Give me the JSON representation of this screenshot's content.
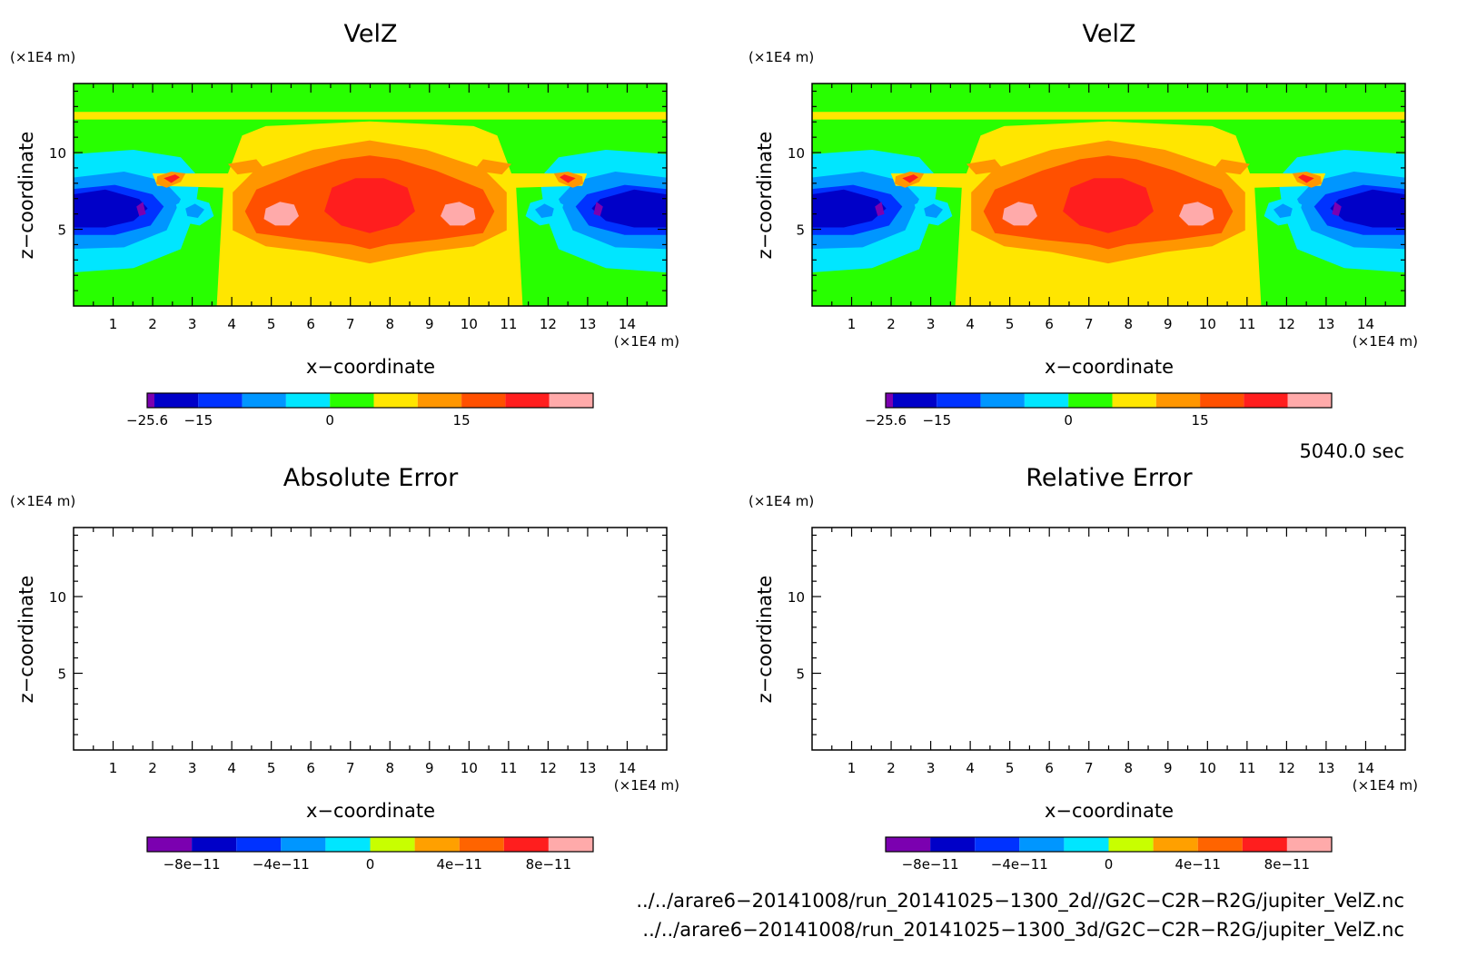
{
  "panels": [
    {
      "id": "velz-2d",
      "title": "VelZ",
      "x_unit": "(×1E4 m)",
      "y_unit": "(×1E4 m)",
      "xlabel": "x−coordinate",
      "ylabel": "z−coordinate",
      "field": "velz",
      "colorbar": {
        "colors": [
          "#7b00b0",
          "#0000c8",
          "#0032ff",
          "#0096ff",
          "#00e6ff",
          "#28ff00",
          "#ffe600",
          "#ff9600",
          "#ff5000",
          "#ff1e1e",
          "#ffaaaa"
        ],
        "labels": [
          "−25.6",
          "−15",
          "0",
          "15"
        ]
      }
    },
    {
      "id": "velz-3d",
      "title": "VelZ",
      "x_unit": "(×1E4 m)",
      "y_unit": "(×1E4 m)",
      "xlabel": "x−coordinate",
      "ylabel": "z−coordinate",
      "field": "velz",
      "colorbar": {
        "colors": [
          "#7b00b0",
          "#0000c8",
          "#0032ff",
          "#0096ff",
          "#00e6ff",
          "#28ff00",
          "#ffe600",
          "#ff9600",
          "#ff5000",
          "#ff1e1e",
          "#ffaaaa"
        ],
        "labels": [
          "−25.6",
          "−15",
          "0",
          "15"
        ]
      }
    },
    {
      "id": "absolute-error",
      "title": "Absolute Error",
      "x_unit": "(×1E4 m)",
      "y_unit": "(×1E4 m)",
      "xlabel": "x−coordinate",
      "ylabel": "z−coordinate",
      "field": "empty",
      "colorbar": {
        "colors": [
          "#7b00b0",
          "#0000c8",
          "#0032ff",
          "#0096ff",
          "#00e6ff",
          "#c8ff00",
          "#ffa000",
          "#ff6400",
          "#ff1e1e",
          "#ffaaaa"
        ],
        "labels": [
          "−8e−11",
          "−4e−11",
          "0",
          "4e−11",
          "8e−11"
        ]
      }
    },
    {
      "id": "relative-error",
      "title": "Relative Error",
      "x_unit": "(×1E4 m)",
      "y_unit": "(×1E4 m)",
      "xlabel": "x−coordinate",
      "ylabel": "z−coordinate",
      "field": "empty",
      "colorbar": {
        "colors": [
          "#7b00b0",
          "#0000c8",
          "#0032ff",
          "#0096ff",
          "#00e6ff",
          "#c8ff00",
          "#ffa000",
          "#ff6400",
          "#ff1e1e",
          "#ffaaaa"
        ],
        "labels": [
          "−8e−11",
          "−4e−11",
          "0",
          "4e−11",
          "8e−11"
        ]
      }
    }
  ],
  "chart_data": [
    {
      "type": "heatmap",
      "title": "VelZ",
      "xlabel": "x−coordinate",
      "ylabel": "z−coordinate",
      "xlim": [
        0,
        15
      ],
      "ylim": [
        0,
        14.5
      ],
      "x_ticks": [
        1,
        2,
        3,
        4,
        5,
        6,
        7,
        8,
        9,
        10,
        11,
        12,
        13,
        14
      ],
      "y_ticks": [
        5,
        10
      ],
      "colorbar_levels": [
        -25.6,
        -20,
        -15,
        -10,
        -5,
        0,
        5,
        10,
        15,
        20,
        25
      ],
      "colorbar_labels": [
        "−25.6",
        "−15",
        "0",
        "15"
      ]
    },
    {
      "type": "heatmap",
      "title": "VelZ",
      "xlabel": "x−coordinate",
      "ylabel": "z−coordinate",
      "xlim": [
        0,
        15
      ],
      "ylim": [
        0,
        14.5
      ],
      "x_ticks": [
        1,
        2,
        3,
        4,
        5,
        6,
        7,
        8,
        9,
        10,
        11,
        12,
        13,
        14
      ],
      "y_ticks": [
        5,
        10
      ],
      "colorbar_levels": [
        -25.6,
        -20,
        -15,
        -10,
        -5,
        0,
        5,
        10,
        15,
        20,
        25
      ],
      "colorbar_labels": [
        "−25.6",
        "−15",
        "0",
        "15"
      ]
    },
    {
      "type": "heatmap",
      "title": "Absolute Error",
      "xlabel": "x−coordinate",
      "ylabel": "z−coordinate",
      "xlim": [
        0,
        15
      ],
      "ylim": [
        0,
        14.5
      ],
      "x_ticks": [
        1,
        2,
        3,
        4,
        5,
        6,
        7,
        8,
        9,
        10,
        11,
        12,
        13,
        14
      ],
      "y_ticks": [
        5,
        10
      ],
      "colorbar_levels": [
        -1e-10,
        -8e-11,
        -6e-11,
        -4e-11,
        -2e-11,
        0,
        2e-11,
        4e-11,
        6e-11,
        8e-11,
        1e-10
      ],
      "colorbar_labels": [
        "−8e−11",
        "−4e−11",
        "0",
        "4e−11",
        "8e−11"
      ]
    },
    {
      "type": "heatmap",
      "title": "Relative Error",
      "xlabel": "x−coordinate",
      "ylabel": "z−coordinate",
      "xlim": [
        0,
        15
      ],
      "ylim": [
        0,
        14.5
      ],
      "x_ticks": [
        1,
        2,
        3,
        4,
        5,
        6,
        7,
        8,
        9,
        10,
        11,
        12,
        13,
        14
      ],
      "y_ticks": [
        5,
        10
      ],
      "colorbar_levels": [
        -1e-10,
        -8e-11,
        -6e-11,
        -4e-11,
        -2e-11,
        0,
        2e-11,
        4e-11,
        6e-11,
        8e-11,
        1e-10
      ],
      "colorbar_labels": [
        "−8e−11",
        "−4e−11",
        "0",
        "4e−11",
        "8e−11"
      ]
    }
  ],
  "timestamp": "5040.0 sec",
  "file_paths": [
    "../../arare6−20141008/run_20141025−1300_2d//G2C−C2R−R2G/jupiter_VelZ.nc",
    "../../arare6−20141008/run_20141025−1300_3d/G2C−C2R−R2G/jupiter_VelZ.nc"
  ]
}
